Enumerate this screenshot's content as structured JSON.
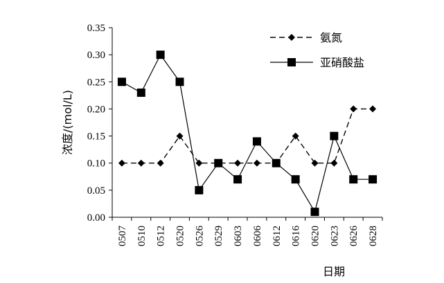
{
  "chart_data": {
    "type": "line",
    "categories": [
      "0507",
      "0510",
      "0512",
      "0520",
      "0526",
      "0529",
      "0603",
      "0606",
      "0612",
      "0616",
      "0620",
      "0623",
      "0626",
      "0628"
    ],
    "series": [
      {
        "name": "氨氮",
        "values": [
          0.1,
          0.1,
          0.1,
          0.15,
          0.1,
          0.1,
          0.1,
          0.1,
          0.1,
          0.15,
          0.1,
          0.1,
          0.2,
          0.2
        ],
        "line_style": "dashed",
        "marker": "diamond",
        "color": "#000000"
      },
      {
        "name": "亚硝酸盐",
        "values": [
          0.25,
          0.23,
          0.3,
          0.25,
          0.05,
          0.1,
          0.07,
          0.14,
          0.1,
          0.07,
          0.01,
          0.15,
          0.07,
          0.07
        ],
        "line_style": "solid",
        "marker": "square",
        "color": "#000000"
      }
    ],
    "xlabel": "日期",
    "ylabel": "浓度/(mol/L)",
    "ylim": [
      0,
      0.35
    ],
    "yticks": [
      "0.00",
      "0.05",
      "0.10",
      "0.15",
      "0.20",
      "0.25",
      "0.30",
      "0.35"
    ],
    "grid": false,
    "legend": "top-right"
  }
}
